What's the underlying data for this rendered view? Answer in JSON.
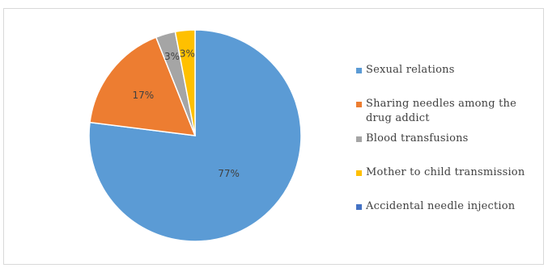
{
  "chart_data": {
    "type": "pie",
    "title": "",
    "slices": [
      {
        "label": "Sexual relations",
        "value": 77,
        "display": "77%",
        "color": "#5b9bd5"
      },
      {
        "label": "Sharing needles among the drug addict",
        "value": 17,
        "display": "17%",
        "color": "#ed7d31"
      },
      {
        "label": "Blood transfusions",
        "value": 3,
        "display": "3%",
        "color": "#a5a5a5"
      },
      {
        "label": "Mother to child transmission",
        "value": 3,
        "display": "3%",
        "color": "#ffc000"
      },
      {
        "label": "Accidental needle injection",
        "value": 0,
        "display": "",
        "color": "#4472c4"
      }
    ],
    "start_angle_deg": 0,
    "direction": "clockwise",
    "legend_position": "right"
  }
}
